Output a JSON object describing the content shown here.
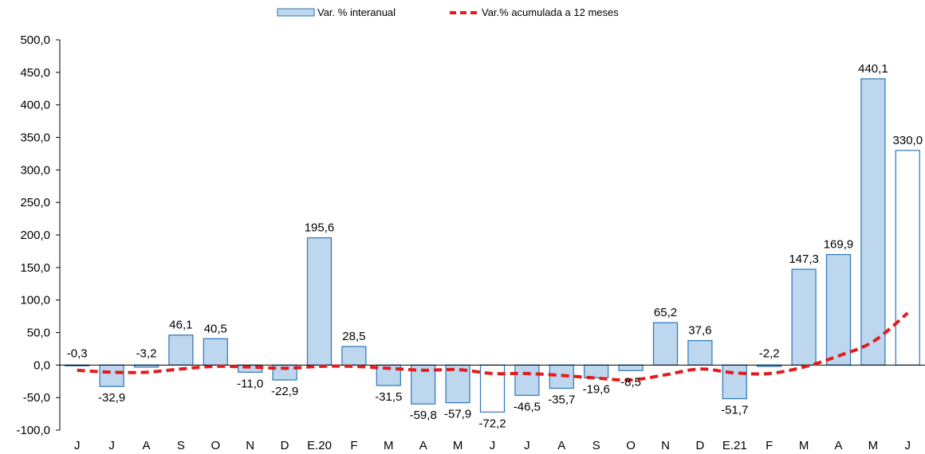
{
  "chart_data": {
    "type": "bar",
    "categories": [
      "J",
      "J",
      "A",
      "S",
      "O",
      "N",
      "D",
      "E.20",
      "F",
      "M",
      "A",
      "M",
      "J",
      "J",
      "A",
      "S",
      "O",
      "N",
      "D",
      "E.21",
      "F",
      "M",
      "A",
      "M",
      "J"
    ],
    "series": [
      {
        "name": "Var. % interanual",
        "type": "bar",
        "values": [
          -0.3,
          -32.9,
          -3.2,
          46.1,
          40.5,
          -11.0,
          -22.9,
          195.6,
          28.5,
          -31.5,
          -59.8,
          -57.9,
          -72.2,
          -46.5,
          -35.7,
          -19.6,
          -8.5,
          65.2,
          37.6,
          -51.7,
          -2.2,
          147.3,
          169.9,
          440.1,
          330.0
        ],
        "data_labels": [
          "-0,3",
          "-32,9",
          "-3,2",
          "46,1",
          "40,5",
          "-11,0",
          "-22,9",
          "195,6",
          "28,5",
          "-31,5",
          "-59,8",
          "-57,9",
          "-72,2",
          "-46,5",
          "-35,7",
          "-19,6",
          "-8,5",
          "65,2",
          "37,6",
          "-51,7",
          "-2,2",
          "147,3",
          "169,9",
          "440,1",
          "330,0"
        ],
        "white_fill_indices": [
          12,
          24
        ],
        "color": "#bdd7ee",
        "border_color": "#2e75b6"
      },
      {
        "name": "Var.% acumulada a 12 meses",
        "type": "line",
        "style": "dashed",
        "values": [
          -8,
          -11,
          -11,
          -6,
          -2,
          -3,
          -5,
          -2,
          -2,
          -5,
          -8,
          -7,
          -13,
          -13,
          -16,
          -20,
          -23,
          -15,
          -6,
          -12,
          -13,
          -3,
          14,
          36,
          80
        ],
        "color": "#e41a1c"
      }
    ],
    "yticks": [
      "500,0",
      "450,0",
      "400,0",
      "350,0",
      "300,0",
      "250,0",
      "200,0",
      "150,0",
      "100,0",
      "50,0",
      "0,0",
      "-50,0",
      "-100,0"
    ],
    "ylim": [
      -100,
      500
    ],
    "legend_position": "top-center",
    "grid": false
  }
}
